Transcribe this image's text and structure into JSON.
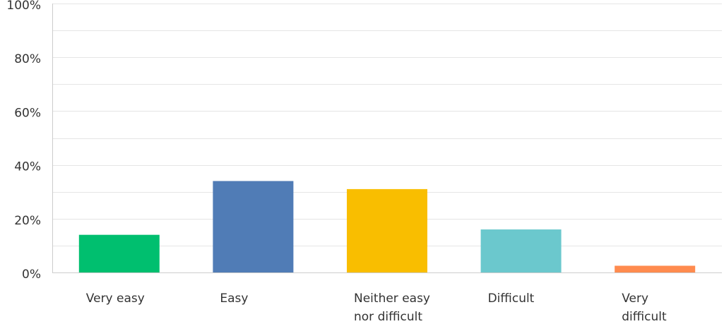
{
  "chart_data": {
    "type": "bar",
    "categories": [
      "Very easy",
      "Easy",
      "Neither easy nor difficult",
      "Difficult",
      "Very difficult"
    ],
    "category_label_lines": [
      [
        "Very easy"
      ],
      [
        "Easy"
      ],
      [
        "Neither easy",
        "nor difficult"
      ],
      [
        "Difficult"
      ],
      [
        "Very",
        "difficult"
      ]
    ],
    "values": [
      14,
      34,
      31,
      16,
      2.5
    ],
    "colors": [
      "#00bf6f",
      "#507cb6",
      "#f9be00",
      "#6bc8cd",
      "#ff8b4f"
    ],
    "ylim": [
      0,
      100
    ],
    "yticks": [
      0,
      20,
      40,
      60,
      80,
      100
    ],
    "ytick_labels": [
      "0%",
      "20%",
      "40%",
      "60%",
      "80%",
      "100%"
    ],
    "grid": true,
    "grid_color": "#e5e5e5",
    "axis_color": "#cccccc",
    "title": "",
    "xlabel": "",
    "ylabel": ""
  }
}
